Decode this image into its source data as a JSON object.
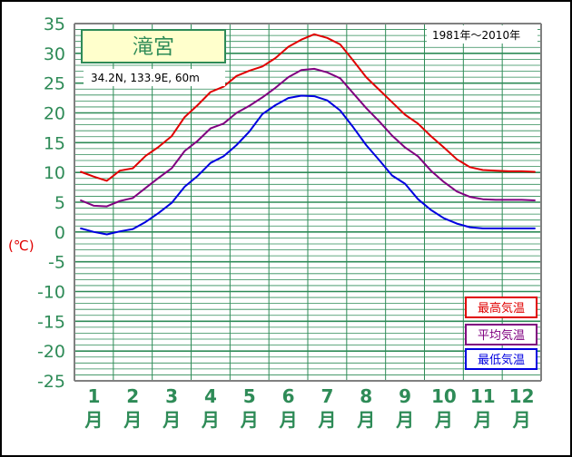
{
  "chart_data": {
    "type": "line",
    "title": "滝宮",
    "location": "34.2N, 133.9E, 60m",
    "period": "1981年〜2010年",
    "ylabel": "(℃)",
    "ylim": [
      -25,
      35
    ],
    "yticks": [
      "35",
      "30",
      "25",
      "20",
      "15",
      "10",
      "5",
      "0",
      "-5",
      "-10",
      "-15",
      "-20",
      "-25"
    ],
    "months": [
      {
        "num": "1",
        "unit": "月"
      },
      {
        "num": "2",
        "unit": "月"
      },
      {
        "num": "3",
        "unit": "月"
      },
      {
        "num": "4",
        "unit": "月"
      },
      {
        "num": "5",
        "unit": "月"
      },
      {
        "num": "6",
        "unit": "月"
      },
      {
        "num": "7",
        "unit": "月"
      },
      {
        "num": "8",
        "unit": "月"
      },
      {
        "num": "9",
        "unit": "月"
      },
      {
        "num": "10",
        "unit": "月"
      },
      {
        "num": "11",
        "unit": "月"
      },
      {
        "num": "12",
        "unit": "月"
      }
    ],
    "grid": true,
    "legend_position": "bottom-right",
    "x": [
      1,
      2,
      3,
      4,
      5,
      6,
      7,
      8,
      9,
      10,
      11,
      12,
      13,
      14,
      15,
      16,
      17,
      18,
      19,
      20,
      21,
      22,
      23,
      24,
      25,
      26,
      27,
      28,
      29,
      30,
      31,
      32,
      33,
      34,
      35,
      36
    ],
    "series": [
      {
        "name": "最高気温",
        "color": "#e00000",
        "values": [
          10.1,
          9.3,
          8.6,
          10.3,
          10.7,
          12.8,
          14.3,
          16.1,
          19.3,
          21.3,
          23.5,
          24.4,
          26.2,
          27.1,
          27.8,
          29.2,
          31.1,
          32.3,
          33.2,
          32.6,
          31.5,
          28.8,
          26.0,
          23.9,
          21.8,
          19.7,
          18.2,
          16.1,
          14.2,
          12.2,
          10.9,
          10.4,
          10.3,
          10.2,
          10.2,
          10.1
        ]
      },
      {
        "name": "平均気温",
        "color": "#800080",
        "values": [
          5.3,
          4.4,
          4.3,
          5.2,
          5.7,
          7.4,
          9.1,
          10.7,
          13.6,
          15.3,
          17.4,
          18.2,
          20.0,
          21.2,
          22.6,
          24.2,
          26.0,
          27.2,
          27.4,
          26.8,
          25.8,
          23.3,
          20.8,
          18.6,
          16.2,
          14.2,
          12.7,
          10.3,
          8.4,
          6.8,
          5.9,
          5.5,
          5.4,
          5.4,
          5.4,
          5.3
        ]
      },
      {
        "name": "最低気温",
        "color": "#0000e0",
        "values": [
          0.6,
          0.0,
          -0.4,
          0.1,
          0.5,
          1.7,
          3.2,
          4.9,
          7.6,
          9.4,
          11.6,
          12.7,
          14.6,
          16.9,
          19.8,
          21.3,
          22.5,
          22.9,
          22.8,
          22.1,
          20.4,
          17.6,
          14.6,
          12.1,
          9.5,
          8.1,
          5.5,
          3.7,
          2.3,
          1.4,
          0.8,
          0.6,
          0.6,
          0.6,
          0.6,
          0.6
        ]
      }
    ]
  }
}
